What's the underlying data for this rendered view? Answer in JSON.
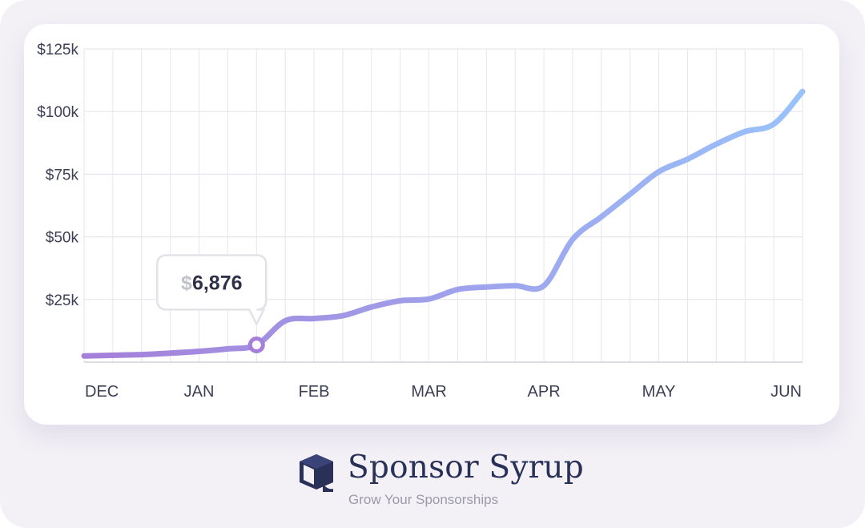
{
  "colors": {
    "line_start": "#a57fd9",
    "line_end": "#99c2fb",
    "grid": "#e6e6ec",
    "axis_text": "#3d3f55",
    "tooltip_value": "#2e3047",
    "tooltip_currency": "#c2c2cc",
    "brand_text": "#2a3159",
    "tagline_text": "#9a9aab"
  },
  "tooltip": {
    "currency": "$",
    "value": "6,876"
  },
  "brand": {
    "name": "Sponsor Syrup",
    "tagline": "Grow Your Sponsorships",
    "logo_icon": "box-icon"
  },
  "chart_data": {
    "type": "line",
    "title": "",
    "xlabel": "",
    "ylabel": "",
    "x_tick_labels": [
      "DEC",
      "JAN",
      "FEB",
      "MAR",
      "APR",
      "MAY",
      "JUN"
    ],
    "y_tick_labels": [
      "$25k",
      "$50k",
      "$75k",
      "$100k",
      "$125k"
    ],
    "y_tick_values": [
      25000,
      50000,
      75000,
      100000,
      125000
    ],
    "ylim": [
      0,
      125000
    ],
    "xlim": [
      0,
      6.25
    ],
    "grid": true,
    "legend": "none",
    "highlight": {
      "x": 1.5,
      "y": 6876
    },
    "series": [
      {
        "points": [
          [
            0,
            2500
          ],
          [
            0.5,
            3000
          ],
          [
            0.75,
            3600
          ],
          [
            1,
            4300
          ],
          [
            1.25,
            5300
          ],
          [
            1.5,
            6876
          ],
          [
            1.75,
            16500
          ],
          [
            2,
            17400
          ],
          [
            2.25,
            18500
          ],
          [
            2.5,
            22000
          ],
          [
            2.75,
            24500
          ],
          [
            3,
            25200
          ],
          [
            3.25,
            29000
          ],
          [
            3.5,
            30000
          ],
          [
            3.75,
            30500
          ],
          [
            4,
            30500
          ],
          [
            4.25,
            49000
          ],
          [
            4.5,
            58000
          ],
          [
            4.75,
            67000
          ],
          [
            5,
            76000
          ],
          [
            5.25,
            81000
          ],
          [
            5.5,
            87000
          ],
          [
            5.75,
            92000
          ],
          [
            6,
            95000
          ],
          [
            6.25,
            108000
          ]
        ]
      }
    ]
  }
}
